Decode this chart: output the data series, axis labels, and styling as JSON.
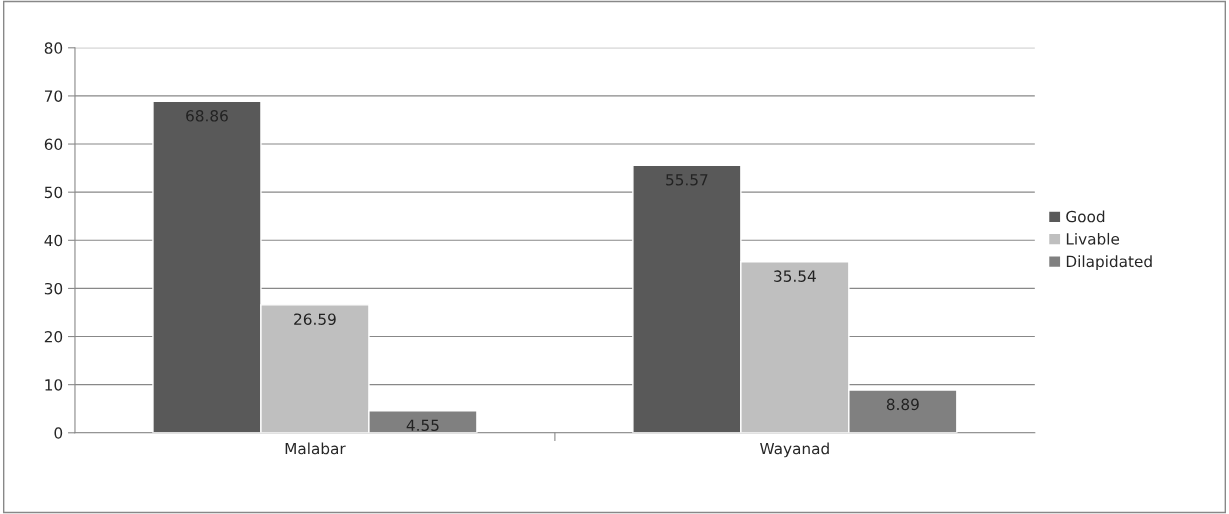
{
  "chart_data": {
    "type": "bar",
    "categories": [
      "Malabar",
      "Wayanad"
    ],
    "series": [
      {
        "name": "Good",
        "color": "#595959",
        "values": [
          68.86,
          55.57
        ]
      },
      {
        "name": "Livable",
        "color": "#bfbfbf",
        "values": [
          26.59,
          35.54
        ]
      },
      {
        "name": "Dilapidated",
        "color": "#808080",
        "values": [
          4.55,
          8.89
        ]
      }
    ],
    "ylim": [
      0,
      80
    ],
    "yticks": [
      0,
      10,
      20,
      30,
      40,
      50,
      60,
      70,
      80
    ],
    "grid": "y",
    "legend": "right",
    "data_labels": true
  }
}
